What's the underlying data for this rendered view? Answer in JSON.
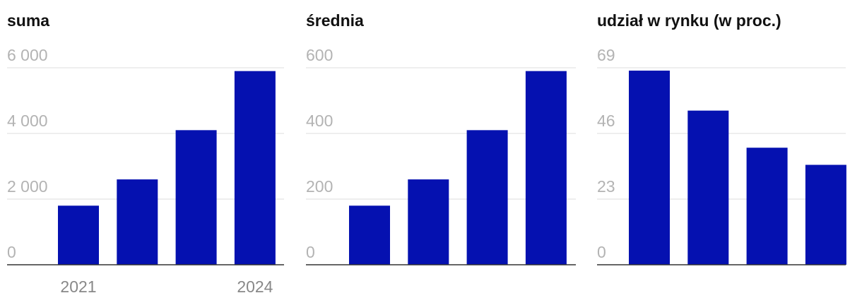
{
  "chart_data": [
    {
      "type": "bar",
      "title": "suma",
      "categories": [
        "2021",
        null,
        null,
        "2024"
      ],
      "values": [
        1800,
        2600,
        4100,
        5900
      ],
      "color": "#0511b0",
      "ylim": [
        0,
        6000
      ],
      "yticks": [
        0,
        {
          "value": 2000,
          "label": "2 000"
        },
        {
          "value": 4000,
          "label": "4 000"
        },
        {
          "value": 6000,
          "label": "6 000"
        }
      ],
      "grid": true
    },
    {
      "type": "bar",
      "title": "średnia",
      "categories": [
        null,
        null,
        null,
        null
      ],
      "values": [
        180,
        260,
        410,
        590
      ],
      "color": "#0511b0",
      "ylim": [
        0,
        600
      ],
      "yticks": [
        0,
        200,
        400,
        600
      ],
      "grid": true
    },
    {
      "type": "bar",
      "title": "udział w rynku (w proc.)",
      "categories": [
        null,
        null,
        null,
        null
      ],
      "values": [
        68,
        54,
        41,
        35
      ],
      "color": "#0511b0",
      "ylim": [
        0,
        69
      ],
      "yticks": [
        0,
        23,
        46,
        69
      ],
      "grid": true
    }
  ]
}
